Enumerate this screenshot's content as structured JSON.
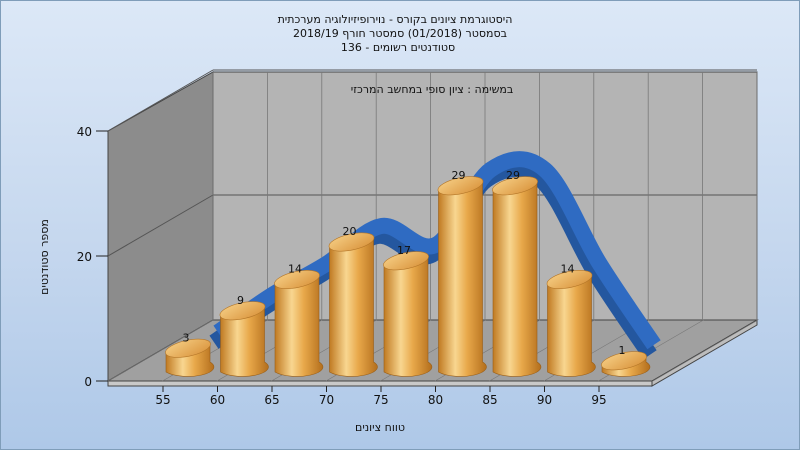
{
  "chart_data": {
    "type": "bar",
    "title_lines": [
      "היסטוגרמת ציונים בקורס - נוירופיזיולוגיה מערכתית",
      "בסמסטר  (01/2018)  סמסטר חורף 2018/19",
      "סטודנטים רשומים - 136"
    ],
    "subtitle": "במשימה : ציון סופי במחשב המרכזי",
    "xlabel": "טווח ציונים",
    "ylabel": "מספר סטודנטים",
    "categories": [
      "55",
      "60",
      "65",
      "70",
      "75",
      "80",
      "85",
      "90",
      "95"
    ],
    "values": [
      3,
      9,
      14,
      20,
      17,
      29,
      29,
      14,
      1
    ],
    "y_ticks": [
      "0",
      "20",
      "40"
    ],
    "ylim": [
      0,
      40
    ],
    "has_trend_curve": true,
    "grid": true,
    "colors": {
      "bar": "#e8a84a",
      "bar_dark": "#c07a22",
      "bar_light": "#f8d690",
      "curve": "#2f6bc2",
      "back_wall": "#b4b4b4",
      "side_wall": "#8c8c8c",
      "floor": "#a0a0a0"
    }
  }
}
